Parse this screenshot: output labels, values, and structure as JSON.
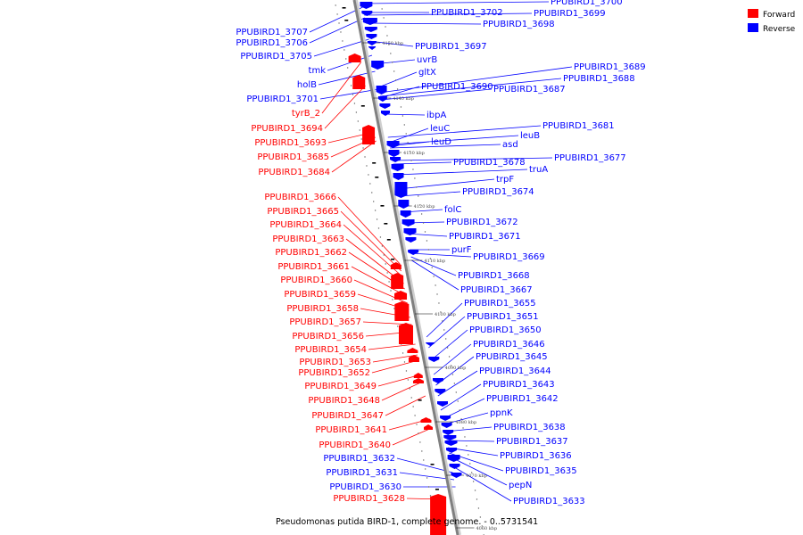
{
  "caption": "Pseudomonas putida BIRD-1, complete genome. - 0..5731541",
  "legend": [
    {
      "label": "Forward",
      "color": "#ff0000"
    },
    {
      "label": "Reverse",
      "color": "#0000ff"
    }
  ],
  "colors": {
    "forward": "#ff0000",
    "reverse": "#0000ff",
    "axis": "#808080"
  },
  "scale_ticks": [
    "4150 kbp",
    "4140 kbp",
    "4130 kbp",
    "4120 kbp",
    "4110 kbp",
    "4100 kbp",
    "4090 kbp",
    "4080 kbp",
    "4070 kbp",
    "4060 kbp"
  ],
  "reverse_labels": [
    "PPUBIRD1_3707",
    "PPUBIRD1_3706",
    "PPUBIRD1_3705",
    "tmk",
    "holB",
    "PPUBIRD1_3701",
    "PPUBIRD1_3700",
    "PPUBIRD1_3702",
    "PPUBIRD1_3699",
    "PPUBIRD1_3698",
    "PPUBIRD1_3697",
    "uvrB",
    "gltX",
    "PPUBIRD1_3689",
    "PPUBIRD1_3688",
    "PPUBIRD1_3690",
    "PPUBIRD1_3687",
    "ibpA",
    "PPUBIRD1_3681",
    "leuC",
    "leuB",
    "leuD",
    "asd",
    "PPUBIRD1_3677",
    "PPUBIRD1_3678",
    "truA",
    "trpF",
    "PPUBIRD1_3674",
    "folC",
    "PPUBIRD1_3672",
    "PPUBIRD1_3671",
    "purF",
    "PPUBIRD1_3669",
    "PPUBIRD1_3668",
    "PPUBIRD1_3667",
    "PPUBIRD1_3655",
    "PPUBIRD1_3651",
    "PPUBIRD1_3650",
    "PPUBIRD1_3646",
    "PPUBIRD1_3645",
    "PPUBIRD1_3644",
    "PPUBIRD1_3643",
    "PPUBIRD1_3642",
    "ppnK",
    "PPUBIRD1_3638",
    "PPUBIRD1_3637",
    "PPUBIRD1_3636",
    "PPUBIRD1_3635",
    "pepN",
    "PPUBIRD1_3633",
    "PPUBIRD1_3632",
    "PPUBIRD1_3631",
    "PPUBIRD1_3630"
  ],
  "forward_labels": [
    "tyrB_2",
    "PPUBIRD1_3694",
    "PPUBIRD1_3693",
    "PPUBIRD1_3685",
    "PPUBIRD1_3684",
    "PPUBIRD1_3666",
    "PPUBIRD1_3665",
    "PPUBIRD1_3664",
    "PPUBIRD1_3663",
    "PPUBIRD1_3662",
    "PPUBIRD1_3661",
    "PPUBIRD1_3660",
    "PPUBIRD1_3659",
    "PPUBIRD1_3658",
    "PPUBIRD1_3657",
    "PPUBIRD1_3656",
    "PPUBIRD1_3654",
    "PPUBIRD1_3653",
    "PPUBIRD1_3652",
    "PPUBIRD1_3649",
    "PPUBIRD1_3648",
    "PPUBIRD1_3647",
    "PPUBIRD1_3641",
    "PPUBIRD1_3640",
    "PPUBIRD1_3628"
  ]
}
